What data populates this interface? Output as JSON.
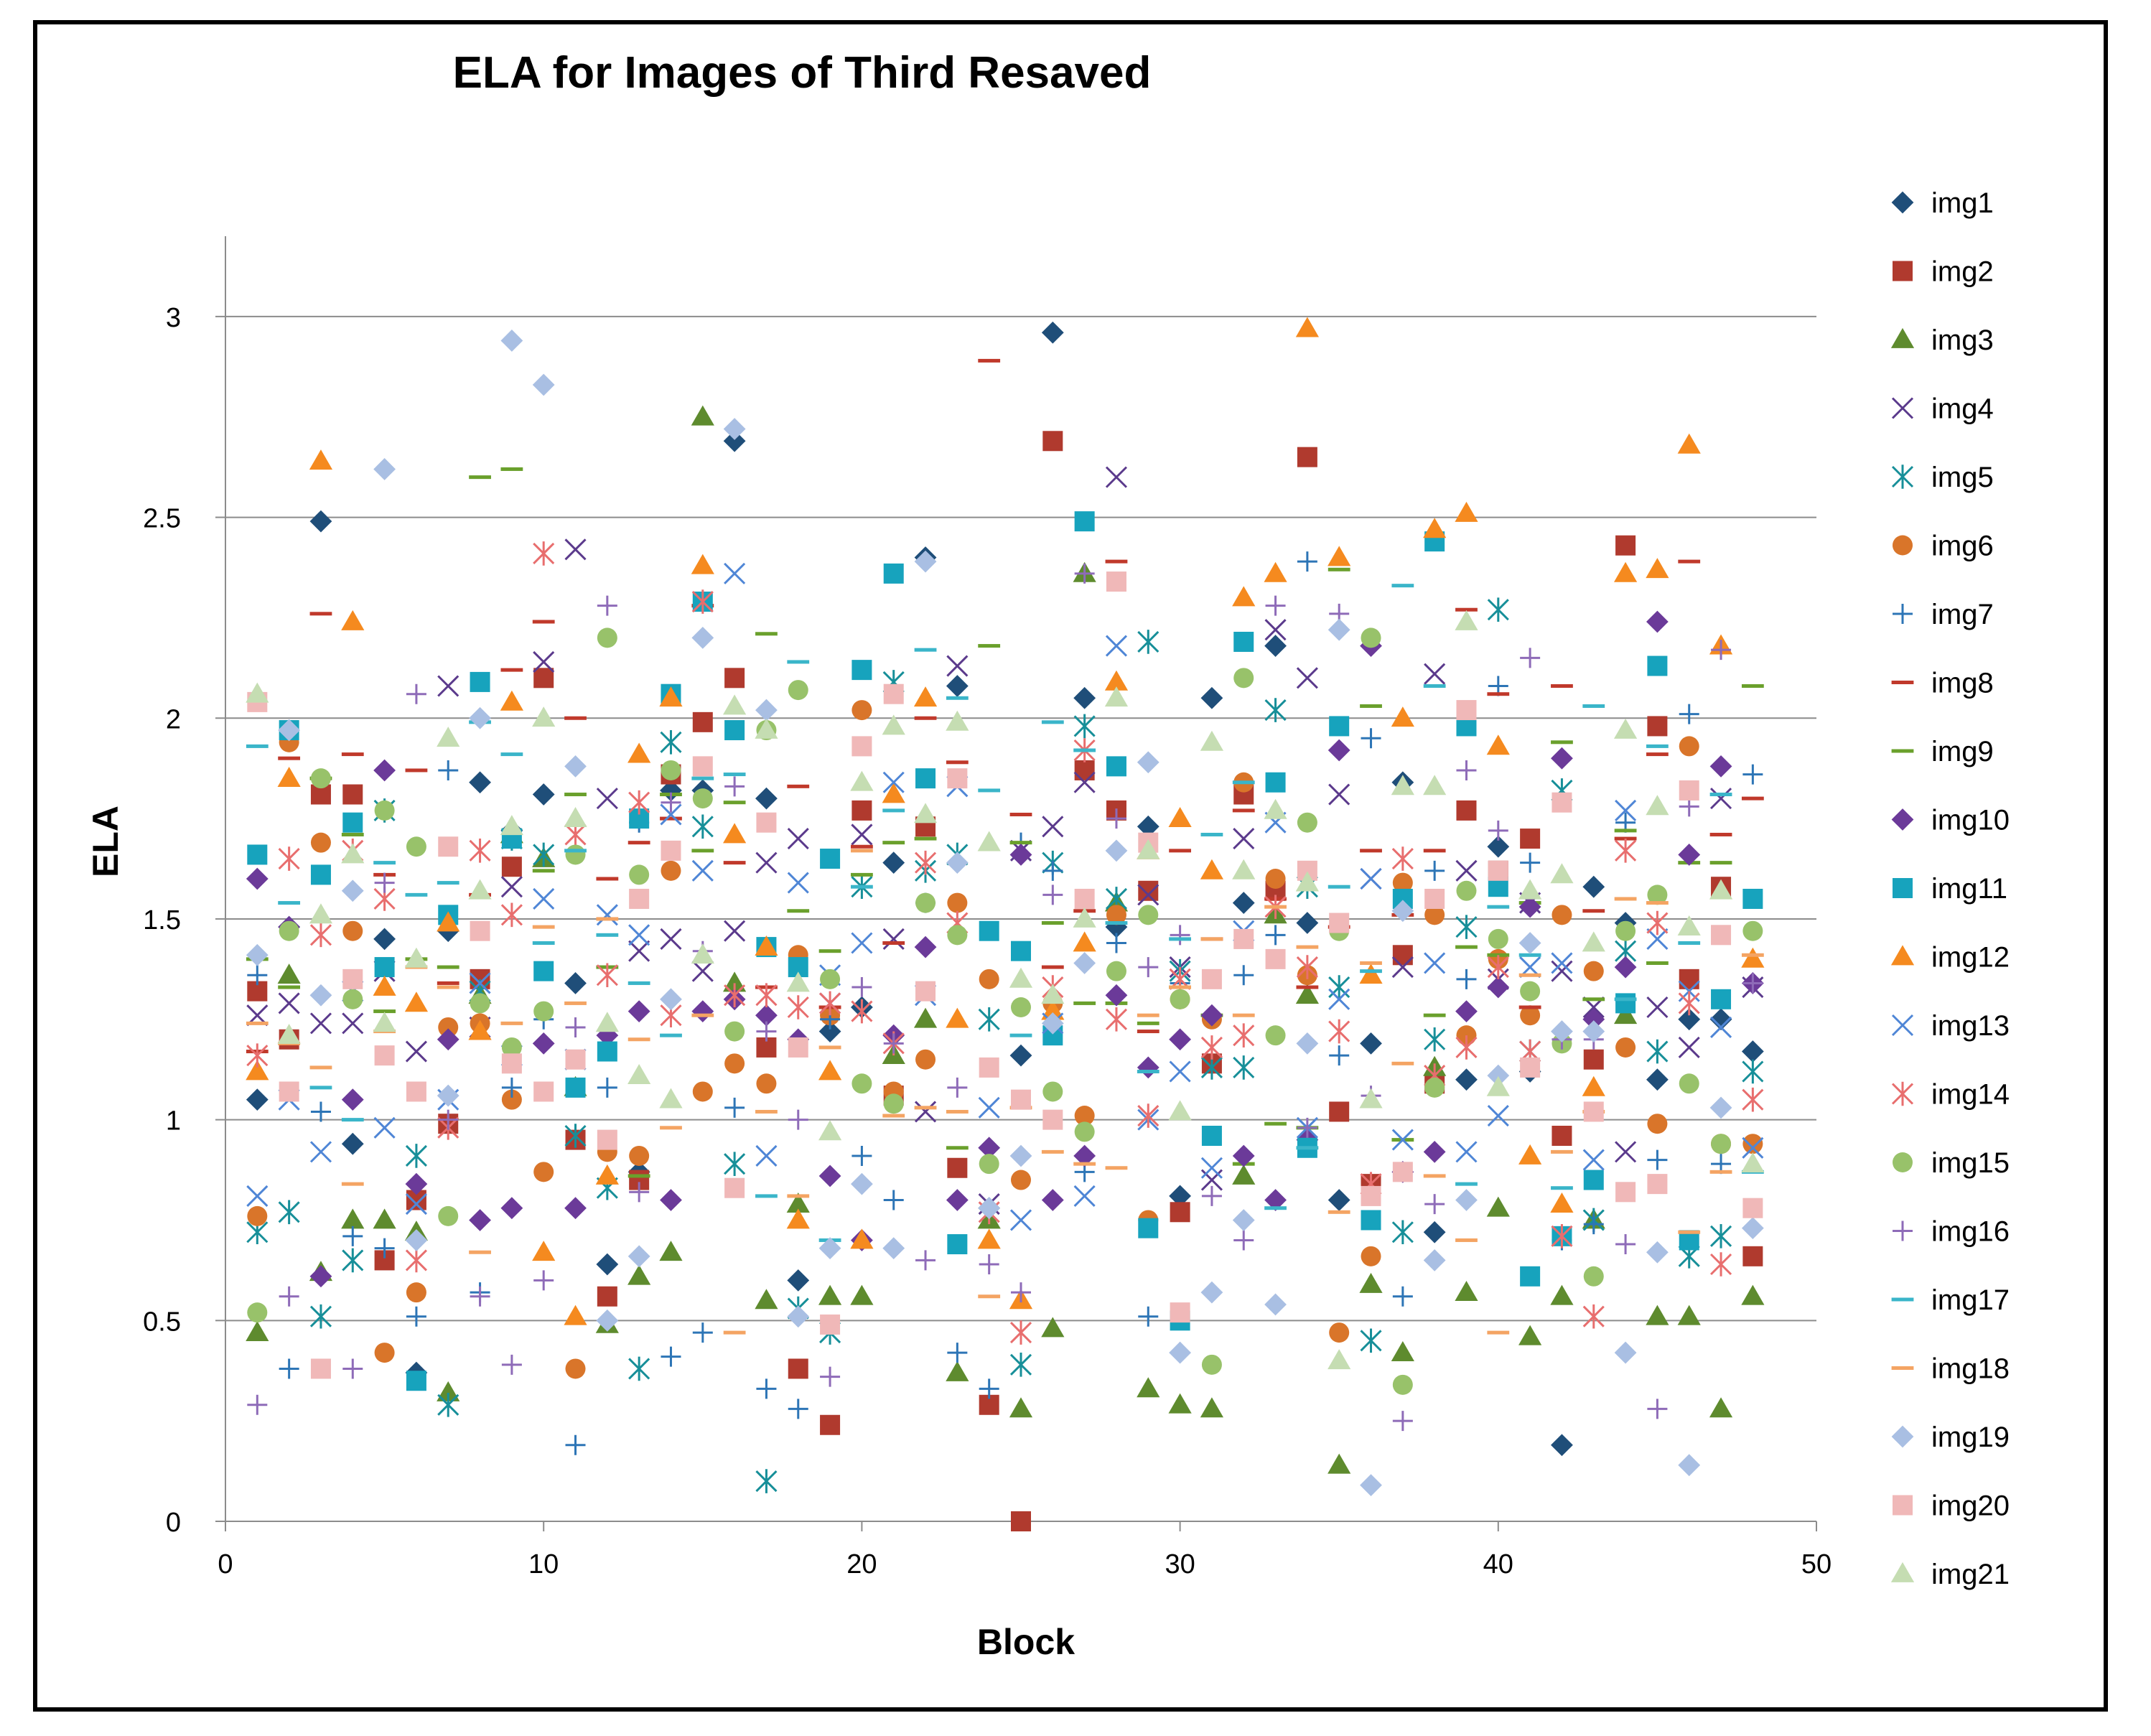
{
  "chart_data": {
    "type": "scatter",
    "title": "ELA for Images of Third Resaved",
    "xlabel": "Block",
    "ylabel": "ELA",
    "xlim": [
      0,
      50
    ],
    "ylim": [
      0,
      3.2
    ],
    "x_ticks": [
      0,
      10,
      20,
      30,
      40,
      50
    ],
    "x_tick_labels": [
      "0",
      "10",
      "20",
      "30",
      "40",
      "50"
    ],
    "y_ticks": [
      0,
      0.5,
      1,
      1.5,
      2,
      2.5,
      3
    ],
    "y_tick_labels": [
      "0",
      "0.5",
      "1",
      "1.5",
      "2",
      "2.5",
      "3"
    ],
    "grid": "horizontal",
    "legend_position": "right",
    "x": [
      1,
      2,
      3,
      4,
      5,
      6,
      7,
      8,
      9,
      10,
      11,
      12,
      13,
      14,
      15,
      16,
      17,
      18,
      19,
      20,
      21,
      22,
      23,
      24,
      25,
      26,
      27,
      28,
      29,
      30,
      31,
      32,
      33,
      34,
      35,
      36,
      37,
      38,
      39,
      40,
      41,
      42,
      43,
      44,
      45,
      46,
      47,
      48
    ],
    "series": [
      {
        "name": "img1",
        "marker": "diamond",
        "color": "#1F4E79",
        "values": [
          1.05,
          1.48,
          2.49,
          0.94,
          1.45,
          0.37,
          1.47,
          1.84,
          1.72,
          1.81,
          1.34,
          0.64,
          0.87,
          1.82,
          1.82,
          2.69,
          1.8,
          0.6,
          1.22,
          1.28,
          1.64,
          2.4,
          2.08,
          0.78,
          1.16,
          2.96,
          2.05,
          1.48,
          1.73,
          0.81,
          2.05,
          1.54,
          2.18,
          1.49,
          0.8,
          1.19,
          1.84,
          0.72,
          1.1,
          1.68,
          1.12,
          0.19,
          1.58,
          1.49,
          1.1,
          1.25,
          1.25,
          1.17
        ]
      },
      {
        "name": "img2",
        "marker": "square",
        "color": "#B03A2E",
        "values": [
          1.32,
          1.2,
          1.81,
          1.81,
          0.65,
          0.8,
          0.99,
          1.35,
          1.63,
          2.1,
          0.95,
          0.56,
          0.85,
          1.86,
          1.99,
          2.1,
          1.18,
          0.38,
          0.24,
          1.77,
          1.06,
          1.73,
          0.88,
          0.29,
          0.0,
          2.69,
          1.87,
          1.77,
          1.57,
          0.77,
          1.14,
          1.81,
          1.57,
          2.65,
          1.02,
          0.84,
          1.41,
          1.09,
          1.77,
          1.62,
          1.7,
          0.96,
          1.15,
          2.43,
          1.98,
          1.35,
          1.58,
          0.66
        ]
      },
      {
        "name": "img3",
        "marker": "triangle",
        "color": "#5E8B2E",
        "values": [
          0.47,
          1.36,
          0.62,
          0.75,
          0.75,
          0.72,
          0.32,
          1.31,
          1.71,
          1.65,
          1.08,
          0.49,
          0.61,
          0.67,
          2.75,
          1.34,
          0.55,
          0.79,
          0.56,
          0.56,
          1.16,
          1.25,
          0.37,
          0.75,
          0.28,
          0.48,
          2.36,
          1.54,
          0.33,
          0.29,
          0.28,
          0.86,
          1.51,
          1.31,
          0.14,
          0.59,
          0.42,
          1.13,
          0.57,
          0.78,
          0.46,
          0.56,
          0.75,
          1.26,
          0.51,
          0.51,
          0.28,
          0.56
        ]
      },
      {
        "name": "img4",
        "marker": "x",
        "color": "#5B3A8C",
        "values": [
          1.26,
          1.29,
          1.24,
          1.24,
          1.37,
          1.17,
          2.08,
          1.23,
          1.58,
          2.14,
          2.42,
          1.8,
          1.42,
          1.45,
          1.37,
          1.47,
          1.64,
          1.7,
          1.29,
          1.71,
          1.45,
          1.02,
          2.13,
          0.79,
          1.67,
          1.73,
          1.84,
          2.6,
          1.56,
          1.38,
          0.85,
          1.7,
          2.22,
          2.1,
          1.81,
          1.6,
          1.38,
          2.11,
          1.62,
          1.35,
          1.54,
          1.37,
          1.28,
          0.92,
          1.28,
          1.18,
          1.8,
          1.33
        ]
      },
      {
        "name": "img5",
        "marker": "asterisk",
        "color": "#178F99",
        "values": [
          0.72,
          0.77,
          0.51,
          0.65,
          1.77,
          0.91,
          0.29,
          1.32,
          1.7,
          1.66,
          0.96,
          0.83,
          0.38,
          1.94,
          1.73,
          0.89,
          0.1,
          0.53,
          0.47,
          1.58,
          2.09,
          1.62,
          1.66,
          1.25,
          0.39,
          1.64,
          1.98,
          1.55,
          2.19,
          1.37,
          1.13,
          1.13,
          2.02,
          1.58,
          1.33,
          0.45,
          0.72,
          1.2,
          1.48,
          2.27,
          1.17,
          1.82,
          0.75,
          1.42,
          1.17,
          0.66,
          0.71,
          1.12
        ]
      },
      {
        "name": "img6",
        "marker": "circle",
        "color": "#D9752A",
        "values": [
          0.76,
          1.94,
          1.69,
          1.47,
          0.42,
          0.57,
          1.23,
          1.24,
          1.05,
          0.87,
          0.38,
          0.92,
          0.91,
          1.62,
          1.07,
          1.14,
          1.09,
          1.41,
          1.26,
          2.02,
          1.07,
          1.15,
          1.54,
          1.35,
          0.85,
          1.29,
          1.01,
          1.51,
          0.75,
          1.3,
          1.25,
          1.84,
          1.6,
          1.36,
          0.47,
          0.66,
          1.59,
          1.51,
          1.21,
          1.4,
          1.26,
          1.51,
          1.37,
          1.18,
          0.99,
          1.93,
          0.94,
          0.94
        ]
      },
      {
        "name": "img7",
        "marker": "plus",
        "color": "#2D75B6",
        "values": [
          1.36,
          0.38,
          1.02,
          0.71,
          0.68,
          0.51,
          1.87,
          0.57,
          1.08,
          1.25,
          0.19,
          1.08,
          1.74,
          0.41,
          0.47,
          1.03,
          0.33,
          0.28,
          1.25,
          0.91,
          0.8,
          1.54,
          0.42,
          0.33,
          1.69,
          1.62,
          0.87,
          1.44,
          0.51,
          1.34,
          1.26,
          1.36,
          1.46,
          2.39,
          1.16,
          1.95,
          0.56,
          1.62,
          1.35,
          2.08,
          1.64,
          0.7,
          0.74,
          1.74,
          0.9,
          2.01,
          0.89,
          1.86
        ]
      },
      {
        "name": "img8",
        "marker": "dash",
        "color": "#C0392B",
        "values": [
          1.17,
          1.9,
          2.26,
          1.91,
          1.61,
          1.87,
          1.34,
          1.56,
          2.12,
          2.24,
          2.0,
          1.6,
          1.69,
          1.75,
          2.28,
          1.64,
          1.33,
          1.83,
          1.28,
          1.68,
          1.44,
          2.0,
          1.89,
          2.89,
          1.76,
          1.38,
          1.52,
          2.39,
          1.22,
          1.67,
          1.45,
          1.77,
          1.55,
          1.33,
          1.48,
          1.67,
          1.51,
          1.67,
          2.27,
          2.06,
          1.28,
          2.08,
          1.52,
          1.7,
          1.91,
          2.39,
          1.71,
          1.8
        ]
      },
      {
        "name": "img9",
        "marker": "dash",
        "color": "#6AA02C",
        "values": [
          1.4,
          1.33,
          1.85,
          1.71,
          1.27,
          1.4,
          1.38,
          2.6,
          2.62,
          1.62,
          1.81,
          1.38,
          0.86,
          1.81,
          1.67,
          1.79,
          2.21,
          1.52,
          1.42,
          1.61,
          1.69,
          1.7,
          0.93,
          2.18,
          1.69,
          1.49,
          1.29,
          1.29,
          1.24,
          1.33,
          1.26,
          0.89,
          0.99,
          0.98,
          2.37,
          2.03,
          0.95,
          1.26,
          1.43,
          1.41,
          1.54,
          1.94,
          1.3,
          1.72,
          1.39,
          1.64,
          1.64,
          2.08
        ]
      },
      {
        "name": "img10",
        "marker": "diamond",
        "color": "#6B3A99",
        "values": [
          1.6,
          1.48,
          0.61,
          1.05,
          1.87,
          0.84,
          1.2,
          0.75,
          0.78,
          1.19,
          0.78,
          1.21,
          1.27,
          0.8,
          1.27,
          1.3,
          1.26,
          1.2,
          0.86,
          0.7,
          1.21,
          1.43,
          0.8,
          0.93,
          1.66,
          0.8,
          0.91,
          1.31,
          1.13,
          1.2,
          1.26,
          0.91,
          0.8,
          0.95,
          1.92,
          2.18,
          0.87,
          0.92,
          1.27,
          1.33,
          1.53,
          1.9,
          1.25,
          1.38,
          2.24,
          1.66,
          1.88,
          1.34
        ]
      },
      {
        "name": "img11",
        "marker": "square",
        "color": "#17A3BD",
        "values": [
          1.66,
          1.97,
          1.61,
          1.74,
          1.38,
          0.35,
          1.51,
          2.09,
          1.7,
          1.37,
          1.08,
          1.17,
          1.75,
          2.06,
          2.29,
          1.97,
          1.43,
          1.38,
          1.65,
          2.12,
          2.36,
          1.85,
          0.69,
          1.47,
          1.42,
          1.21,
          2.49,
          1.88,
          0.73,
          0.5,
          0.96,
          2.19,
          1.84,
          0.93,
          1.98,
          0.75,
          1.55,
          2.44,
          1.98,
          1.58,
          0.61,
          0.71,
          0.85,
          1.29,
          2.13,
          0.7,
          1.3,
          1.55
        ]
      },
      {
        "name": "img12",
        "marker": "triangle",
        "color": "#F58A1F",
        "values": [
          1.12,
          1.85,
          2.64,
          2.24,
          1.33,
          1.29,
          1.49,
          1.22,
          2.04,
          0.67,
          0.51,
          0.86,
          1.91,
          2.05,
          2.38,
          1.71,
          1.43,
          0.75,
          1.12,
          0.7,
          1.81,
          2.05,
          1.25,
          0.7,
          0.55,
          1.27,
          1.44,
          2.09,
          1.67,
          1.75,
          1.62,
          2.3,
          2.36,
          2.97,
          2.4,
          1.36,
          2.0,
          2.47,
          2.51,
          1.93,
          0.91,
          0.79,
          1.08,
          2.36,
          2.37,
          2.68,
          2.18,
          1.4
        ]
      },
      {
        "name": "img13",
        "marker": "x",
        "color": "#4F86D6",
        "values": [
          0.81,
          1.05,
          0.92,
          1.32,
          0.98,
          0.79,
          1.05,
          1.34,
          1.16,
          1.55,
          1.15,
          1.51,
          1.46,
          1.76,
          1.62,
          2.36,
          0.91,
          1.59,
          1.36,
          1.44,
          1.84,
          1.31,
          1.83,
          1.03,
          0.75,
          1.24,
          0.81,
          2.18,
          1.0,
          1.12,
          0.88,
          1.47,
          1.74,
          0.98,
          1.3,
          1.6,
          0.95,
          1.39,
          0.92,
          1.01,
          1.38,
          1.39,
          0.9,
          1.77,
          1.45,
          1.32,
          1.23,
          0.93
        ]
      },
      {
        "name": "img14",
        "marker": "asterisk",
        "color": "#E86E6E",
        "values": [
          1.16,
          1.65,
          1.46,
          1.67,
          1.55,
          0.65,
          0.98,
          1.67,
          1.51,
          2.41,
          1.71,
          1.36,
          1.79,
          1.26,
          2.29,
          1.31,
          1.31,
          1.28,
          1.29,
          1.27,
          1.19,
          1.64,
          1.49,
          0.77,
          0.47,
          1.33,
          1.92,
          1.25,
          1.01,
          1.35,
          1.18,
          1.21,
          1.53,
          1.38,
          1.22,
          0.84,
          1.65,
          1.11,
          1.18,
          1.38,
          1.17,
          0.71,
          0.51,
          1.67,
          1.49,
          1.29,
          0.64,
          1.05
        ]
      },
      {
        "name": "img15",
        "marker": "circle",
        "color": "#98C26A",
        "values": [
          0.52,
          1.47,
          1.85,
          1.3,
          1.77,
          1.68,
          0.76,
          1.29,
          1.18,
          1.27,
          1.66,
          2.2,
          1.61,
          1.87,
          1.8,
          1.22,
          1.97,
          2.07,
          1.35,
          1.09,
          1.04,
          1.54,
          1.46,
          0.89,
          1.28,
          1.07,
          0.97,
          1.37,
          1.51,
          1.3,
          0.39,
          2.1,
          1.21,
          1.74,
          1.47,
          2.2,
          0.34,
          1.08,
          1.57,
          1.45,
          1.32,
          1.19,
          0.61,
          1.47,
          1.56,
          1.09,
          0.94,
          1.47
        ]
      },
      {
        "name": "img16",
        "marker": "plus",
        "color": "#8E6BB8",
        "values": [
          0.29,
          0.56,
          1.31,
          0.38,
          1.59,
          2.06,
          1.0,
          0.56,
          0.39,
          0.6,
          1.23,
          2.28,
          0.82,
          1.79,
          1.42,
          1.83,
          1.22,
          1.0,
          0.36,
          1.33,
          1.19,
          0.65,
          1.08,
          0.64,
          0.57,
          1.56,
          2.36,
          1.75,
          1.38,
          1.46,
          0.81,
          0.7,
          2.28,
          0.98,
          2.26,
          1.06,
          0.25,
          0.79,
          1.87,
          1.72,
          2.15,
          1.2,
          1.2,
          0.69,
          0.28,
          1.78,
          2.17,
          1.34
        ]
      },
      {
        "name": "img17",
        "marker": "dash",
        "color": "#3AB5C9",
        "values": [
          1.93,
          1.54,
          1.08,
          1.0,
          1.64,
          1.56,
          1.59,
          1.99,
          1.91,
          1.44,
          1.67,
          1.46,
          1.34,
          1.21,
          1.85,
          1.86,
          0.81,
          2.14,
          0.7,
          1.58,
          1.77,
          2.17,
          2.05,
          1.82,
          1.21,
          1.99,
          1.92,
          1.49,
          1.12,
          1.45,
          1.71,
          1.84,
          0.78,
          0.93,
          1.58,
          1.37,
          2.33,
          2.08,
          0.84,
          1.53,
          1.41,
          0.83,
          2.03,
          1.3,
          1.93,
          1.44,
          1.81,
          0.87
        ]
      },
      {
        "name": "img18",
        "marker": "dash",
        "color": "#F4A463",
        "values": [
          1.24,
          1.19,
          1.13,
          0.84,
          1.22,
          1.38,
          1.33,
          0.67,
          1.24,
          1.48,
          1.29,
          1.5,
          1.2,
          0.98,
          1.26,
          0.47,
          1.02,
          0.81,
          1.18,
          1.67,
          1.01,
          1.03,
          1.02,
          0.56,
          1.03,
          0.92,
          0.89,
          0.88,
          1.26,
          1.33,
          1.45,
          1.26,
          1.53,
          1.43,
          0.77,
          1.39,
          1.14,
          0.86,
          0.7,
          0.47,
          1.36,
          0.92,
          1.02,
          1.55,
          1.54,
          0.72,
          0.87,
          1.41
        ]
      },
      {
        "name": "img19",
        "marker": "diamond",
        "color": "#A9BFE3",
        "values": [
          1.41,
          1.97,
          1.31,
          1.57,
          2.62,
          0.7,
          1.06,
          2.0,
          2.94,
          2.83,
          1.88,
          0.5,
          0.66,
          1.3,
          2.2,
          2.72,
          2.02,
          0.51,
          0.68,
          0.84,
          0.68,
          2.39,
          1.64,
          0.78,
          0.91,
          1.24,
          1.39,
          1.67,
          1.89,
          0.42,
          0.57,
          0.75,
          0.54,
          1.19,
          2.22,
          0.09,
          1.52,
          0.65,
          0.8,
          1.11,
          1.44,
          1.22,
          1.22,
          0.42,
          0.67,
          0.14,
          1.03,
          0.73
        ]
      },
      {
        "name": "img20",
        "marker": "square",
        "color": "#F0B8B8",
        "values": [
          2.04,
          1.07,
          0.38,
          1.35,
          1.16,
          1.07,
          1.68,
          1.47,
          1.14,
          1.07,
          1.15,
          0.95,
          1.55,
          1.67,
          1.88,
          0.83,
          1.74,
          1.18,
          0.49,
          1.93,
          2.06,
          1.32,
          1.85,
          1.13,
          1.05,
          1.0,
          1.55,
          2.34,
          1.69,
          0.52,
          1.35,
          1.45,
          1.4,
          1.62,
          1.49,
          0.81,
          0.87,
          1.55,
          2.02,
          1.62,
          1.13,
          1.79,
          1.02,
          0.82,
          0.84,
          1.82,
          1.46,
          0.78
        ]
      },
      {
        "name": "img21",
        "marker": "triangle",
        "color": "#C5DDB2",
        "values": [
          2.06,
          1.21,
          1.51,
          1.66,
          1.24,
          1.4,
          1.95,
          1.57,
          1.73,
          2.0,
          1.75,
          1.24,
          1.11,
          1.05,
          1.41,
          2.03,
          1.97,
          1.34,
          0.97,
          1.84,
          1.98,
          1.76,
          1.99,
          1.69,
          1.35,
          1.31,
          1.5,
          2.05,
          1.67,
          1.02,
          1.94,
          1.62,
          1.77,
          1.59,
          0.4,
          1.05,
          1.83,
          1.83,
          2.24,
          1.08,
          1.57,
          1.61,
          1.44,
          1.97,
          1.78,
          1.48,
          1.57,
          0.89
        ]
      }
    ]
  }
}
